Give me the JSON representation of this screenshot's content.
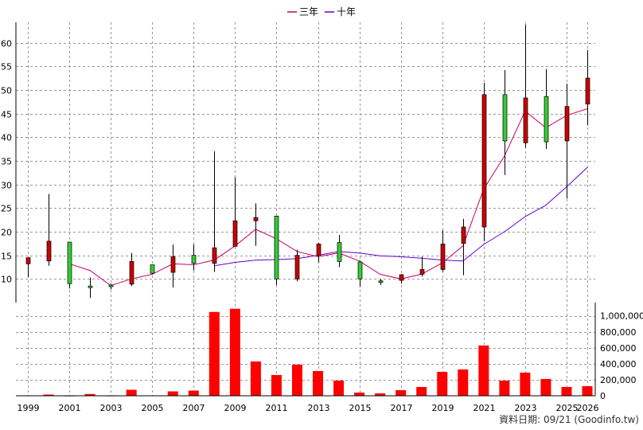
{
  "chart_data": {
    "type": "candlestick",
    "legend": [
      {
        "label": "三年",
        "color": "#cc0066"
      },
      {
        "label": "十年",
        "color": "#6600cc"
      }
    ],
    "price_yticks": [
      10,
      15,
      20,
      25,
      30,
      35,
      40,
      45,
      50,
      55,
      60
    ],
    "volume_yticks": [
      {
        "value": 0,
        "label": "0"
      },
      {
        "value": 200000,
        "label": "200,000"
      },
      {
        "value": 400000,
        "label": "400,000"
      },
      {
        "value": 600000,
        "label": "600,000"
      },
      {
        "value": 800000,
        "label": "800,000"
      },
      {
        "value": 1000000,
        "label": "1,000,000"
      }
    ],
    "x_ticks": [
      {
        "year": 1999,
        "label": "1999"
      },
      {
        "year": 2001,
        "label": "2001"
      },
      {
        "year": 2003,
        "label": "2003"
      },
      {
        "year": 2005,
        "label": "2005"
      },
      {
        "year": 2007,
        "label": "2007"
      },
      {
        "year": 2009,
        "label": "2009"
      },
      {
        "year": 2011,
        "label": "2011"
      },
      {
        "year": 2013,
        "label": "2013"
      },
      {
        "year": 2015,
        "label": "2015"
      },
      {
        "year": 2017,
        "label": "2017"
      },
      {
        "year": 2019,
        "label": "2019"
      },
      {
        "year": 2021,
        "label": "2021"
      },
      {
        "year": 2023,
        "label": "2023"
      },
      {
        "year": 2025,
        "label": "2025"
      },
      {
        "year": 2026,
        "label": "2026"
      }
    ],
    "candles": [
      {
        "year": 1999,
        "open": 13.2,
        "close": 14.5,
        "high": 14.5,
        "low": 10.4,
        "volume": 5000
      },
      {
        "year": 2000,
        "open": 13.8,
        "close": 18.0,
        "high": 28.0,
        "low": 12.8,
        "volume": 15000
      },
      {
        "year": 2001,
        "open": 17.8,
        "close": 9.0,
        "high": 17.8,
        "low": 8.0,
        "volume": 3000
      },
      {
        "year": 2002,
        "open": 8.5,
        "close": 8.2,
        "high": 10.3,
        "low": 6.0,
        "volume": 22000
      },
      {
        "year": 2003,
        "open": 8.7,
        "close": 8.5,
        "high": 9.0,
        "low": 7.8,
        "volume": 4000
      },
      {
        "year": 2004,
        "open": 8.9,
        "close": 13.7,
        "high": 15.5,
        "low": 8.5,
        "volume": 75000
      },
      {
        "year": 2005,
        "open": 13.0,
        "close": 11.2,
        "high": 13.0,
        "low": 11.0,
        "volume": 5000
      },
      {
        "year": 2006,
        "open": 11.4,
        "close": 14.7,
        "high": 17.3,
        "low": 8.2,
        "volume": 55000
      },
      {
        "year": 2007,
        "open": 15.0,
        "close": 13.3,
        "high": 17.3,
        "low": 11.8,
        "volume": 65000
      },
      {
        "year": 2008,
        "open": 13.3,
        "close": 16.6,
        "high": 37.0,
        "low": 11.5,
        "volume": 1050000
      },
      {
        "year": 2009,
        "open": 16.9,
        "close": 22.3,
        "high": 31.5,
        "low": 16.9,
        "volume": 1090000
      },
      {
        "year": 2010,
        "open": 22.3,
        "close": 23.0,
        "high": 26.0,
        "low": 17.0,
        "volume": 430000
      },
      {
        "year": 2011,
        "open": 23.3,
        "close": 10.0,
        "high": 23.3,
        "low": 8.7,
        "volume": 260000
      },
      {
        "year": 2012,
        "open": 10.0,
        "close": 15.0,
        "high": 16.2,
        "low": 9.5,
        "volume": 390000
      },
      {
        "year": 2013,
        "open": 15.0,
        "close": 17.4,
        "high": 17.6,
        "low": 13.5,
        "volume": 310000
      },
      {
        "year": 2014,
        "open": 17.7,
        "close": 13.7,
        "high": 19.3,
        "low": 12.5,
        "volume": 190000
      },
      {
        "year": 2015,
        "open": 13.6,
        "close": 10.0,
        "high": 13.9,
        "low": 8.4,
        "volume": 40000
      },
      {
        "year": 2016,
        "open": 9.6,
        "close": 9.5,
        "high": 10.0,
        "low": 8.7,
        "volume": 30000
      },
      {
        "year": 2017,
        "open": 9.7,
        "close": 10.9,
        "high": 11.0,
        "low": 9.0,
        "volume": 70000
      },
      {
        "year": 2018,
        "open": 11.0,
        "close": 12.0,
        "high": 14.7,
        "low": 10.5,
        "volume": 110000
      },
      {
        "year": 2019,
        "open": 12.0,
        "close": 17.4,
        "high": 20.3,
        "low": 11.5,
        "volume": 300000
      },
      {
        "year": 2020,
        "open": 17.5,
        "close": 21.0,
        "high": 22.7,
        "low": 10.8,
        "volume": 330000
      },
      {
        "year": 2021,
        "open": 21.0,
        "close": 49.0,
        "high": 51.5,
        "low": 18.0,
        "volume": 630000
      },
      {
        "year": 2022,
        "open": 49.0,
        "close": 39.2,
        "high": 54.2,
        "low": 32.0,
        "volume": 190000
      },
      {
        "year": 2023,
        "open": 38.8,
        "close": 48.3,
        "high": 63.8,
        "low": 37.8,
        "volume": 290000
      },
      {
        "year": 2024,
        "open": 48.6,
        "close": 39.0,
        "high": 54.4,
        "low": 37.5,
        "volume": 210000
      },
      {
        "year": 2025,
        "open": 39.2,
        "close": 46.5,
        "high": 51.3,
        "low": 27.0,
        "volume": 110000
      },
      {
        "year": 2026,
        "open": 47.0,
        "close": 52.5,
        "high": 58.4,
        "low": 42.5,
        "volume": 120000
      }
    ],
    "ma3": [
      {
        "year": 2001,
        "value": 13.2
      },
      {
        "year": 2002,
        "value": 11.8
      },
      {
        "year": 2003,
        "value": 8.6
      },
      {
        "year": 2004,
        "value": 10.0
      },
      {
        "year": 2005,
        "value": 11.0
      },
      {
        "year": 2006,
        "value": 13.2
      },
      {
        "year": 2007,
        "value": 13.0
      },
      {
        "year": 2008,
        "value": 14.0
      },
      {
        "year": 2009,
        "value": 17.0
      },
      {
        "year": 2010,
        "value": 20.5
      },
      {
        "year": 2011,
        "value": 18.5
      },
      {
        "year": 2012,
        "value": 15.8
      },
      {
        "year": 2013,
        "value": 14.7
      },
      {
        "year": 2014,
        "value": 15.5
      },
      {
        "year": 2015,
        "value": 13.8
      },
      {
        "year": 2016,
        "value": 11.0
      },
      {
        "year": 2017,
        "value": 10.0
      },
      {
        "year": 2018,
        "value": 11.0
      },
      {
        "year": 2019,
        "value": 13.4
      },
      {
        "year": 2020,
        "value": 17.0
      },
      {
        "year": 2021,
        "value": 29.0
      },
      {
        "year": 2022,
        "value": 36.0
      },
      {
        "year": 2023,
        "value": 45.5
      },
      {
        "year": 2024,
        "value": 42.0
      },
      {
        "year": 2025,
        "value": 44.6
      },
      {
        "year": 2026,
        "value": 46.0
      }
    ],
    "ma10": [
      {
        "year": 2008,
        "value": 12.8
      },
      {
        "year": 2009,
        "value": 13.5
      },
      {
        "year": 2010,
        "value": 14.0
      },
      {
        "year": 2011,
        "value": 14.1
      },
      {
        "year": 2012,
        "value": 14.3
      },
      {
        "year": 2013,
        "value": 15.0
      },
      {
        "year": 2014,
        "value": 15.8
      },
      {
        "year": 2015,
        "value": 15.5
      },
      {
        "year": 2016,
        "value": 14.9
      },
      {
        "year": 2017,
        "value": 14.7
      },
      {
        "year": 2018,
        "value": 14.4
      },
      {
        "year": 2019,
        "value": 14.0
      },
      {
        "year": 2020,
        "value": 13.8
      },
      {
        "year": 2021,
        "value": 17.3
      },
      {
        "year": 2022,
        "value": 20.0
      },
      {
        "year": 2023,
        "value": 23.2
      },
      {
        "year": 2024,
        "value": 25.6
      },
      {
        "year": 2025,
        "value": 29.5
      },
      {
        "year": 2026,
        "value": 33.6
      }
    ],
    "footer": "資料日期: 09/21  (Goodinfo.tw)"
  }
}
